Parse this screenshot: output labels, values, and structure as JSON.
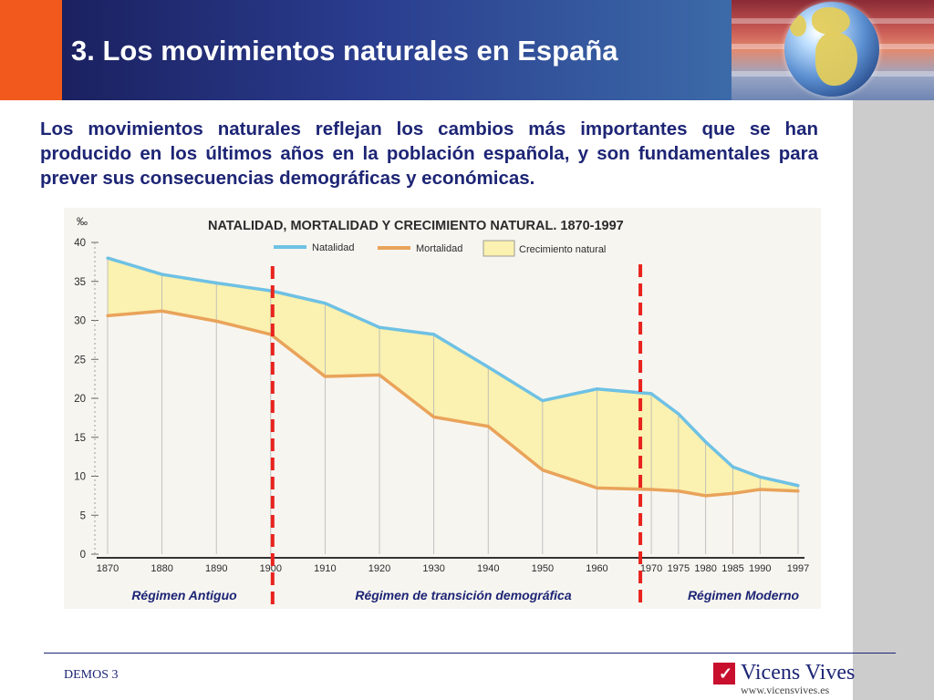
{
  "header": {
    "title": "3. Los movimientos naturales en España"
  },
  "intro": {
    "text": "Los movimientos naturales reflejan los cambios más importantes que se han producido en los últimos años en la población española, y son fundamentales para prever sus consecuencias demográficas y económicas."
  },
  "colors": {
    "natalidad": "#6ec1e4",
    "mortalidad": "#e9a35a",
    "crecimiento_fill": "#fbf1b0",
    "regime_line": "#e8231e",
    "text_blue": "#1d2575"
  },
  "chart_data": {
    "type": "line",
    "title": "NATALIDAD, MORTALIDAD Y CRECIMIENTO NATURAL. 1870-1997",
    "ylabel": "‰",
    "ylim": [
      0,
      40
    ],
    "yticks": [
      0,
      5,
      10,
      15,
      20,
      25,
      30,
      35,
      40
    ],
    "x": [
      1870,
      1880,
      1890,
      1900,
      1910,
      1920,
      1930,
      1940,
      1950,
      1960,
      1970,
      1975,
      1980,
      1985,
      1990,
      1997
    ],
    "x_labels": [
      "1870",
      "1880",
      "1890",
      "1900",
      "1910",
      "1920",
      "1930",
      "1940",
      "1950",
      "1960",
      "1970",
      "1975",
      "1980",
      "1985",
      "1990",
      "1997"
    ],
    "series": [
      {
        "name": "Natalidad",
        "values": [
          38,
          35.9,
          34.8,
          33.8,
          32.2,
          29.1,
          28.2,
          24,
          19.7,
          21.2,
          20.6,
          18,
          14.4,
          11.2,
          9.9,
          8.8
        ]
      },
      {
        "name": "Mortalidad",
        "values": [
          30.6,
          31.2,
          29.9,
          28.2,
          22.8,
          23,
          17.6,
          16.4,
          10.8,
          8.5,
          8.3,
          8.1,
          7.5,
          7.8,
          8.3,
          8.1
        ]
      }
    ],
    "area_legend": "Crecimiento natural",
    "legend_position": "top",
    "regime_boundaries": [
      1900,
      1970
    ],
    "regimes": [
      "Régimen Antiguo",
      "Régimen de transición demográfica",
      "Régimen Moderno"
    ]
  },
  "footer": {
    "left_text": "DEMOS 3",
    "brand_name": "Vicens Vives",
    "brand_url": "www.vicensvives.es"
  }
}
